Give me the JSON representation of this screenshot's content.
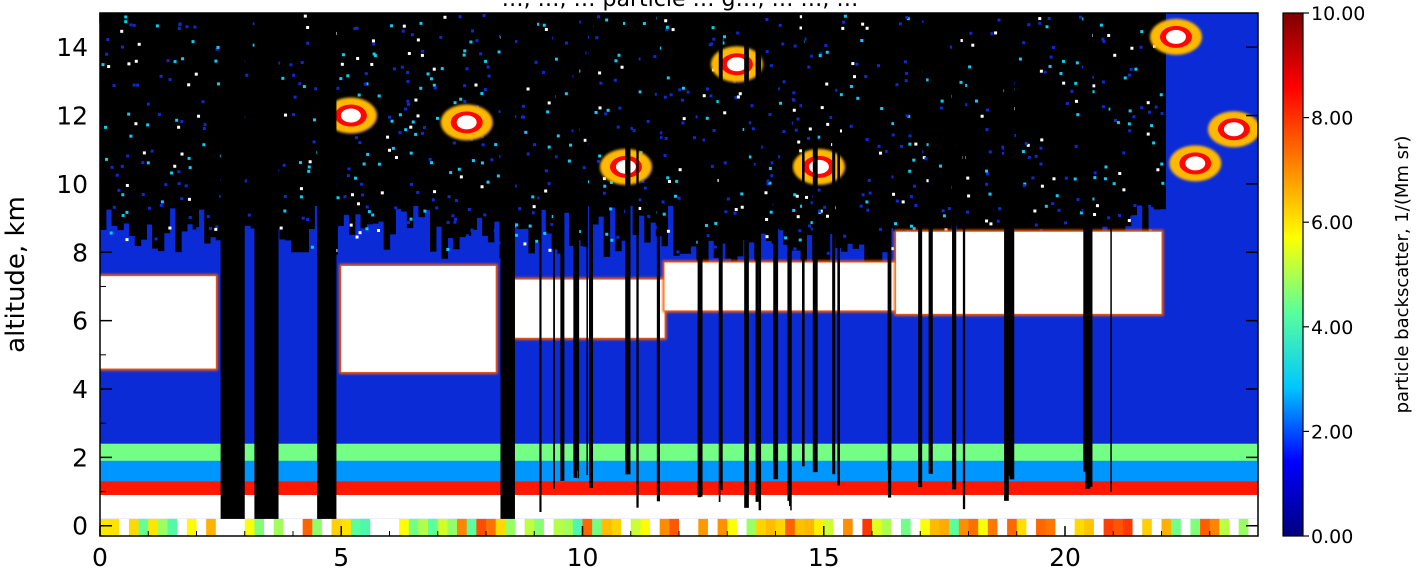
{
  "chart_data": {
    "type": "heatmap",
    "title": "…, …, … particle … g…, … …, …",
    "xlabel": "",
    "ylabel": "altitude, km",
    "xlim": [
      0,
      24
    ],
    "ylim": [
      -0.3,
      15
    ],
    "x_ticks": [
      "0",
      "5",
      "10",
      "15",
      "20"
    ],
    "y_ticks": [
      "0",
      "2",
      "4",
      "6",
      "8",
      "10",
      "12",
      "14"
    ],
    "colorbar": {
      "label": "particle backscatter, 1/(Mm sr)",
      "range": [
        0,
        10
      ],
      "ticks": [
        "0.00",
        "2.00",
        "4.00",
        "6.00",
        "8.00",
        "10.00"
      ],
      "colors": [
        "#00007f",
        "#0000ff",
        "#00c8ff",
        "#5aff9c",
        "#ffff00",
        "#ff7f00",
        "#ff0000",
        "#7f0000"
      ]
    },
    "background_color": "#0a2bd6",
    "missing_color": "#000000",
    "saturated_color": "#ffffff",
    "features": {
      "boundary_layer": {
        "x": [
          0,
          24
        ],
        "y_bottom": 0.9,
        "y_top": 2.4,
        "value": 4.5
      },
      "lower_cloud_layer": [
        {
          "x_start": 0.0,
          "x_end": 2.4,
          "y_bottom": 4.6,
          "y_top": 7.3
        },
        {
          "x_start": 5.0,
          "x_end": 8.2,
          "y_bottom": 4.5,
          "y_top": 7.6
        },
        {
          "x_start": 8.6,
          "x_end": 11.7,
          "y_bottom": 5.5,
          "y_top": 7.2
        },
        {
          "x_start": 11.7,
          "x_end": 16.5,
          "y_bottom": 6.3,
          "y_top": 7.7
        },
        {
          "x_start": 16.5,
          "x_end": 22.0,
          "y_bottom": 6.2,
          "y_top": 8.6
        }
      ],
      "cirrus": [
        {
          "x": 10.9,
          "y": 10.5
        },
        {
          "x": 13.2,
          "y": 13.5
        },
        {
          "x": 14.9,
          "y": 10.5
        },
        {
          "x": 22.7,
          "y": 10.6
        },
        {
          "x": 23.5,
          "y": 11.6
        },
        {
          "x": 22.3,
          "y": 14.3
        },
        {
          "x": 5.2,
          "y": 12.0
        },
        {
          "x": 7.6,
          "y": 11.8
        }
      ],
      "surface_noise_band": {
        "y": [
          -0.3,
          0.2
        ],
        "value": 6.0
      },
      "data_gaps": [
        {
          "x_start": 2.5,
          "x_end": 3.0
        },
        {
          "x_start": 3.2,
          "x_end": 3.7
        },
        {
          "x_start": 4.5,
          "x_end": 4.9
        },
        {
          "x_start": 8.3,
          "x_end": 8.6
        }
      ]
    }
  }
}
